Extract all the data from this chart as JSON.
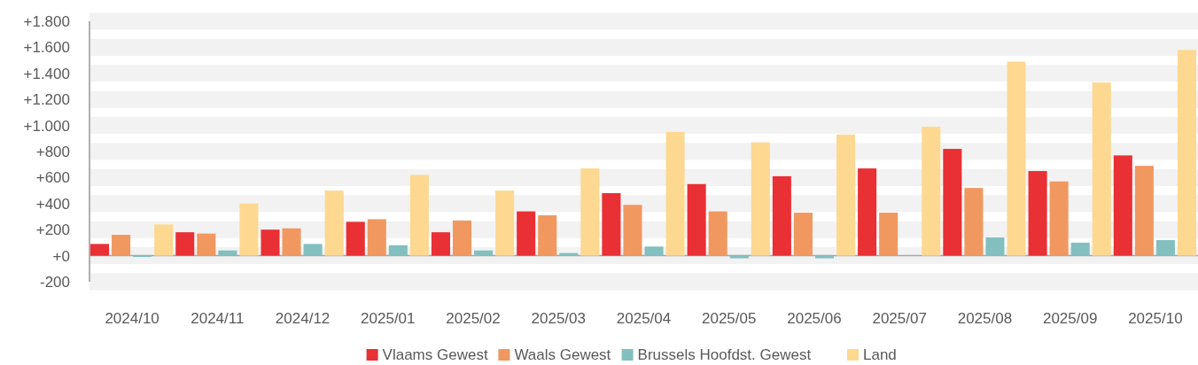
{
  "chart_data": {
    "type": "bar",
    "categories": [
      "2024/10",
      "2024/11",
      "2024/12",
      "2025/01",
      "2025/02",
      "2025/03",
      "2025/04",
      "2025/05",
      "2025/06",
      "2025/07",
      "2025/08",
      "2025/09",
      "2025/10"
    ],
    "series": [
      {
        "name": "Vlaams Gewest",
        "color": "#e83035",
        "values": [
          90,
          180,
          200,
          260,
          180,
          340,
          480,
          550,
          610,
          670,
          820,
          650,
          770
        ]
      },
      {
        "name": "Waals Gewest",
        "color": "#f09860",
        "values": [
          160,
          170,
          210,
          280,
          270,
          310,
          390,
          340,
          330,
          330,
          520,
          570,
          690
        ]
      },
      {
        "name": "Brussels Hoofdst. Gewest",
        "color": "#83bfbf",
        "values": [
          -10,
          40,
          90,
          80,
          40,
          20,
          70,
          -20,
          -20,
          0,
          140,
          100,
          120
        ]
      },
      {
        "name": "Land",
        "color": "#fdd891",
        "values": [
          240,
          400,
          500,
          620,
          500,
          670,
          950,
          870,
          930,
          990,
          1490,
          1330,
          1580
        ]
      }
    ],
    "ylim": [
      -200,
      1800
    ],
    "yticks": [
      -200,
      {
        "value": 0,
        "label": "+0"
      },
      {
        "value": 200,
        "label": "+200"
      },
      {
        "value": 400,
        "label": "+400"
      },
      {
        "value": 600,
        "label": "+600"
      },
      {
        "value": 800,
        "label": "+800"
      },
      {
        "value": 1000,
        "label": "+1.000"
      },
      {
        "value": 1200,
        "label": "+1.200"
      },
      {
        "value": 1400,
        "label": "+1.400"
      },
      {
        "value": 1600,
        "label": "+1.600"
      },
      {
        "value": 1800,
        "label": "+1.800"
      }
    ],
    "grid": "y",
    "legend": "bottom"
  }
}
